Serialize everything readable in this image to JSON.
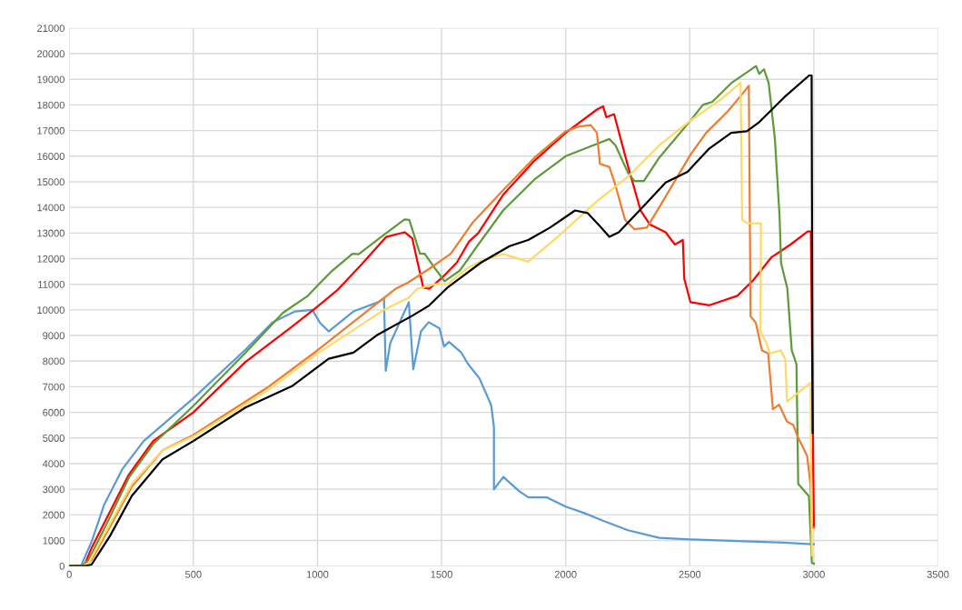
{
  "chart_data": {
    "type": "line",
    "xlim": [
      0,
      3500
    ],
    "ylim": [
      0,
      21000
    ],
    "xticks": [
      0,
      500,
      1000,
      1500,
      2000,
      2500,
      3000,
      3500
    ],
    "yticks": [
      0,
      1000,
      2000,
      3000,
      4000,
      5000,
      6000,
      7000,
      8000,
      9000,
      10000,
      11000,
      12000,
      13000,
      14000,
      15000,
      16000,
      17000,
      18000,
      19000,
      20000,
      21000
    ],
    "grid": true,
    "legend": false,
    "marker": "none",
    "line_style": "solid",
    "series": [
      {
        "color": "#5b9bd5",
        "x": [
          0,
          47,
          90,
          140,
          215,
          300,
          500,
          710,
          820,
          910,
          980,
          1010,
          1045,
          1145,
          1245,
          1268,
          1275,
          1293,
          1368,
          1386,
          1417,
          1448,
          1492,
          1510,
          1530,
          1580,
          1605,
          1653,
          1700,
          1711,
          1711,
          1749,
          1812,
          1850,
          1925,
          2000,
          2075,
          2150,
          2251,
          2377,
          2502,
          2690,
          2879,
          2992,
          3000
        ],
        "values": [
          0,
          0,
          950,
          2380,
          3800,
          4880,
          6550,
          8450,
          9520,
          9940,
          10000,
          9500,
          9160,
          9940,
          10300,
          10460,
          7620,
          8690,
          10300,
          7680,
          9160,
          9520,
          9280,
          8570,
          8750,
          8330,
          7910,
          7320,
          6280,
          5430,
          2990,
          3480,
          2930,
          2680,
          2680,
          2320,
          2070,
          1770,
          1400,
          1100,
          1040,
          980,
          915,
          850,
          850
        ]
      },
      {
        "color": "#ff0000",
        "x": [
          0,
          60,
          90,
          152,
          240,
          338,
          500,
          710,
          897,
          996,
          1079,
          1178,
          1277,
          1351,
          1382,
          1426,
          1450,
          1500,
          1561,
          1611,
          1648,
          1748,
          1874,
          2000,
          2126,
          2151,
          2164,
          2195,
          2252,
          2302,
          2340,
          2403,
          2440,
          2472,
          2478,
          2503,
          2579,
          2692,
          2755,
          2830,
          2906,
          2975,
          2988,
          3000
        ],
        "values": [
          0,
          0,
          710,
          1900,
          3570,
          4880,
          6000,
          7970,
          9340,
          10100,
          10760,
          11780,
          12850,
          13030,
          12790,
          10880,
          10820,
          11240,
          11840,
          12670,
          13000,
          14490,
          15820,
          16910,
          17820,
          17940,
          17520,
          17640,
          15580,
          13880,
          13330,
          13030,
          12550,
          12730,
          11210,
          10300,
          10180,
          10550,
          11150,
          12060,
          12550,
          13060,
          13060,
          1500
        ]
      },
      {
        "color": "#5e9a3a",
        "x": [
          0,
          50,
          78,
          152,
          240,
          338,
          500,
          710,
          860,
          959,
          1005,
          1054,
          1141,
          1166,
          1265,
          1351,
          1370,
          1413,
          1432,
          1475,
          1512,
          1574,
          1648,
          1748,
          1874,
          2000,
          2126,
          2176,
          2201,
          2252,
          2277,
          2315,
          2377,
          2503,
          2553,
          2591,
          2667,
          2730,
          2767,
          2780,
          2799,
          2818,
          2843,
          2862,
          2868,
          2893,
          2911,
          2930,
          2937,
          2980,
          2992,
          3000
        ],
        "values": [
          0,
          0,
          240,
          1670,
          3450,
          4760,
          6250,
          8330,
          9880,
          10530,
          11000,
          11480,
          12190,
          12170,
          12910,
          13530,
          13510,
          12190,
          12190,
          11600,
          11120,
          11540,
          12550,
          13880,
          15090,
          16000,
          16480,
          16670,
          16420,
          15330,
          15030,
          15030,
          15940,
          17390,
          18000,
          18120,
          18850,
          19270,
          19520,
          19210,
          19390,
          18850,
          16670,
          13640,
          11820,
          10850,
          8420,
          7880,
          3210,
          2730,
          120,
          100
        ]
      },
      {
        "color": "#ed7d31",
        "x": [
          0,
          60,
          90,
          165,
          252,
          376,
          500,
          797,
          996,
          1268,
          1314,
          1364,
          1450,
          1537,
          1624,
          1748,
          1874,
          2000,
          2050,
          2101,
          2126,
          2138,
          2176,
          2201,
          2239,
          2277,
          2327,
          2377,
          2503,
          2566,
          2654,
          2717,
          2738,
          2745,
          2766,
          2791,
          2816,
          2835,
          2860,
          2892,
          2917,
          2936,
          2973,
          2986,
          2992,
          3000
        ],
        "values": [
          0,
          0,
          240,
          1550,
          3100,
          4520,
          5120,
          6960,
          8390,
          10470,
          10820,
          11060,
          11600,
          12190,
          13390,
          14670,
          15940,
          16970,
          17150,
          17210,
          16910,
          15700,
          15580,
          14850,
          13520,
          13150,
          13210,
          14000,
          16060,
          16910,
          17760,
          18490,
          18750,
          9750,
          9500,
          8420,
          8300,
          6120,
          6300,
          5640,
          5510,
          5030,
          4300,
          3210,
          1520,
          1500
        ]
      },
      {
        "color": "#ffd966",
        "x": [
          0,
          55,
          78,
          165,
          252,
          376,
          500,
          797,
          996,
          1268,
          1368,
          1401,
          1475,
          1525,
          1599,
          1658,
          1748,
          1849,
          1975,
          2126,
          2252,
          2377,
          2503,
          2629,
          2705,
          2711,
          2730,
          2787,
          2785,
          2810,
          2823,
          2867,
          2885,
          2892,
          2986,
          2992,
          3000
        ],
        "values": [
          0,
          0,
          120,
          1670,
          3210,
          4520,
          5060,
          6840,
          8270,
          10000,
          10470,
          10820,
          11000,
          11000,
          11600,
          11900,
          12180,
          11880,
          12910,
          14240,
          15210,
          16420,
          17390,
          18240,
          18870,
          13520,
          13390,
          13370,
          9150,
          8670,
          8300,
          8420,
          8060,
          6420,
          7150,
          420,
          400
        ]
      },
      {
        "color": "#000000",
        "x": [
          0,
          65,
          90,
          165,
          252,
          376,
          500,
          710,
          897,
          1045,
          1145,
          1244,
          1380,
          1450,
          1525,
          1658,
          1774,
          1849,
          1937,
          2038,
          2088,
          2138,
          2176,
          2214,
          2315,
          2403,
          2491,
          2579,
          2667,
          2730,
          2780,
          2881,
          2981,
          2991,
          2995
        ],
        "values": [
          0,
          0,
          60,
          1190,
          2740,
          4170,
          4880,
          6190,
          7020,
          8090,
          8330,
          9040,
          9760,
          10170,
          10880,
          11840,
          12490,
          12730,
          13210,
          13880,
          13780,
          13270,
          12850,
          13030,
          14060,
          14970,
          15390,
          16300,
          16910,
          16970,
          17330,
          18300,
          19150,
          19150,
          5200
        ]
      }
    ]
  }
}
